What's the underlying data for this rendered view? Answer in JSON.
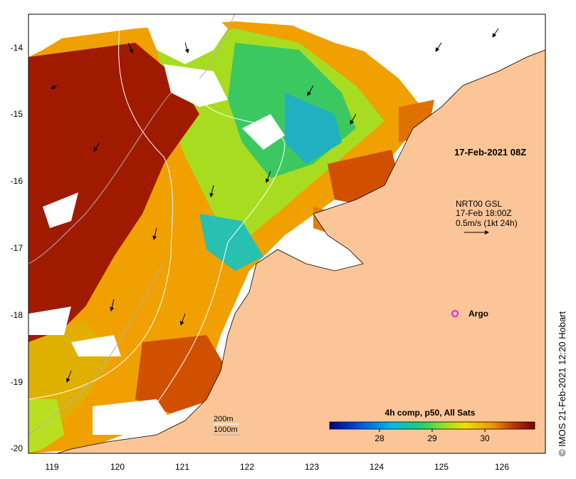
{
  "map": {
    "date_label": "17-Feb-2021 08Z",
    "current_label": {
      "line1": "NRT00 GSL",
      "line2": "17-Feb 18:00Z",
      "line3": "0.5m/s (1kt 24h)"
    },
    "argo_label": "Argo",
    "contours": {
      "c200": "200m",
      "c1000": "1000m"
    },
    "credit": "© IMOS 21-Feb-2021 12:20 Hobart",
    "x_ticks": [
      "119",
      "120",
      "121",
      "122",
      "123",
      "124",
      "125",
      "126"
    ],
    "y_ticks": [
      "-14",
      "-15",
      "-16",
      "-17",
      "-18",
      "-19",
      "-20"
    ],
    "colorbar": {
      "title": "4h comp, p50, All Sats",
      "ticks": [
        "28",
        "29",
        "30"
      ],
      "colors": [
        "#00007a",
        "#0050e0",
        "#00b8e8",
        "#20d070",
        "#90e020",
        "#f0e000",
        "#f09000",
        "#c03000",
        "#7a0000"
      ]
    },
    "colors": {
      "land": "#fbc597",
      "warm": "#a01a00",
      "cloud": "#ffffff",
      "argo": "#e020e0"
    }
  }
}
